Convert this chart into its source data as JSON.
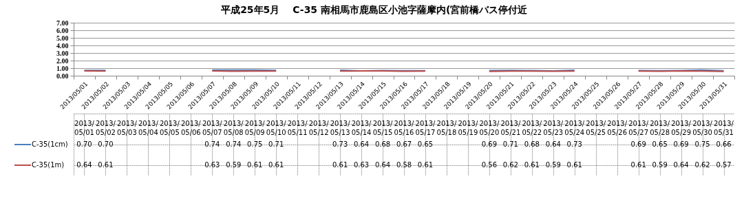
{
  "chart_data": {
    "type": "line",
    "title": "平成25年5月　 C-35 南相馬市鹿島区小池字薩摩内(宮前橋バス停付近",
    "categories": [
      "2013/05/01",
      "2013/05/02",
      "2013/05/03",
      "2013/05/04",
      "2013/05/05",
      "2013/05/06",
      "2013/05/07",
      "2013/05/08",
      "2013/05/09",
      "2013/05/10",
      "2013/05/11",
      "2013/05/12",
      "2013/05/13",
      "2013/05/14",
      "2013/05/15",
      "2013/05/16",
      "2013/05/17",
      "2013/05/18",
      "2013/05/19",
      "2013/05/20",
      "2013/05/21",
      "2013/05/22",
      "2013/05/23",
      "2013/05/24",
      "2013/05/25",
      "2013/05/26",
      "2013/05/27",
      "2013/05/28",
      "2013/05/29",
      "2013/05/30",
      "2013/05/31"
    ],
    "series": [
      {
        "name": "C-35(1cm)",
        "color": "#4a7ebb",
        "values": [
          0.7,
          0.7,
          null,
          null,
          null,
          null,
          0.74,
          0.74,
          0.75,
          0.71,
          null,
          null,
          0.73,
          0.64,
          0.68,
          0.67,
          0.65,
          null,
          null,
          0.69,
          0.71,
          0.68,
          0.64,
          0.73,
          null,
          null,
          0.69,
          0.65,
          0.69,
          0.75,
          0.66
        ],
        "value_labels": [
          "0.70",
          "0.70",
          null,
          null,
          null,
          null,
          "0.74",
          "0.74",
          "0.75",
          "0.71",
          null,
          null,
          "0.73",
          "0.64",
          "0.68",
          "0.67",
          "0.65",
          null,
          null,
          "0.69",
          "0.71",
          "0.68",
          "0.64",
          "0.73",
          null,
          null,
          "0.69",
          "0.65",
          "0.69",
          "0.75",
          "0.66"
        ]
      },
      {
        "name": "C-35(1m)",
        "color": "#be4b48",
        "values": [
          0.64,
          0.61,
          null,
          null,
          null,
          null,
          0.63,
          0.59,
          0.61,
          0.61,
          null,
          null,
          0.61,
          0.63,
          0.64,
          0.58,
          0.61,
          null,
          null,
          0.56,
          0.62,
          0.61,
          0.59,
          0.61,
          null,
          null,
          0.61,
          0.59,
          0.64,
          0.62,
          0.57
        ],
        "value_labels": [
          "0.64",
          "0.61",
          null,
          null,
          null,
          null,
          "0.63",
          "0.59",
          "0.61",
          "0.61",
          null,
          null,
          "0.61",
          "0.63",
          "0.64",
          "0.58",
          "0.61",
          null,
          null,
          "0.56",
          "0.62",
          "0.61",
          "0.59",
          "0.61",
          null,
          null,
          "0.61",
          "0.59",
          "0.64",
          "0.62",
          "0.57"
        ]
      }
    ],
    "ylim": [
      0,
      7
    ],
    "yticks": [
      {
        "value": 0,
        "label": "0.00"
      },
      {
        "value": 1,
        "label": "1.00"
      },
      {
        "value": 2,
        "label": "2.00"
      },
      {
        "value": 3,
        "label": "3.00"
      },
      {
        "value": 4,
        "label": "4.00"
      },
      {
        "value": 5,
        "label": "5.00"
      },
      {
        "value": 6,
        "label": "6.00"
      },
      {
        "value": 7,
        "label": "7.00"
      }
    ],
    "grid": "y",
    "legend": "bottom left",
    "line_style": "solid",
    "marker": "none"
  }
}
